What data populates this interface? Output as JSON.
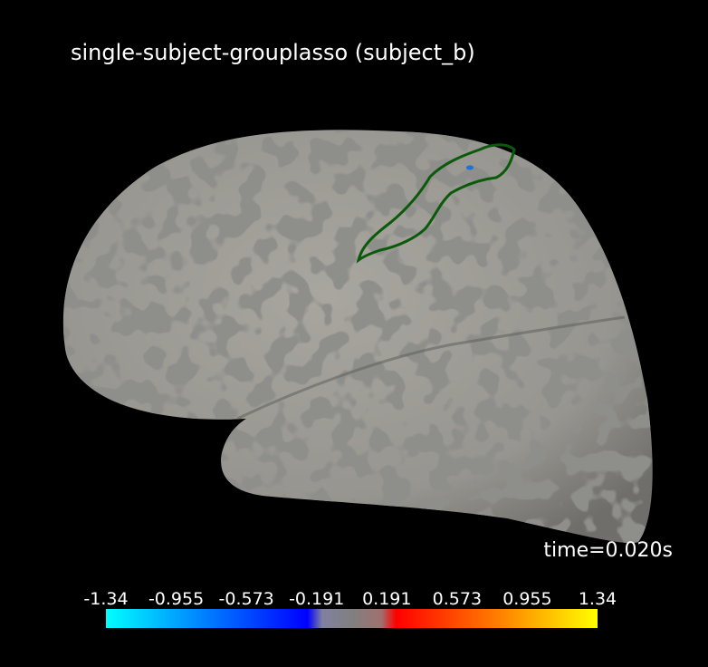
{
  "title": "single-subject-grouplasso (subject_b)",
  "time_label": "time=0.020s",
  "colorbar": {
    "ticks": [
      "-1.34",
      "-0.955",
      "-0.573",
      "-0.191",
      "0.191",
      "0.573",
      "0.955",
      "1.34"
    ]
  }
}
